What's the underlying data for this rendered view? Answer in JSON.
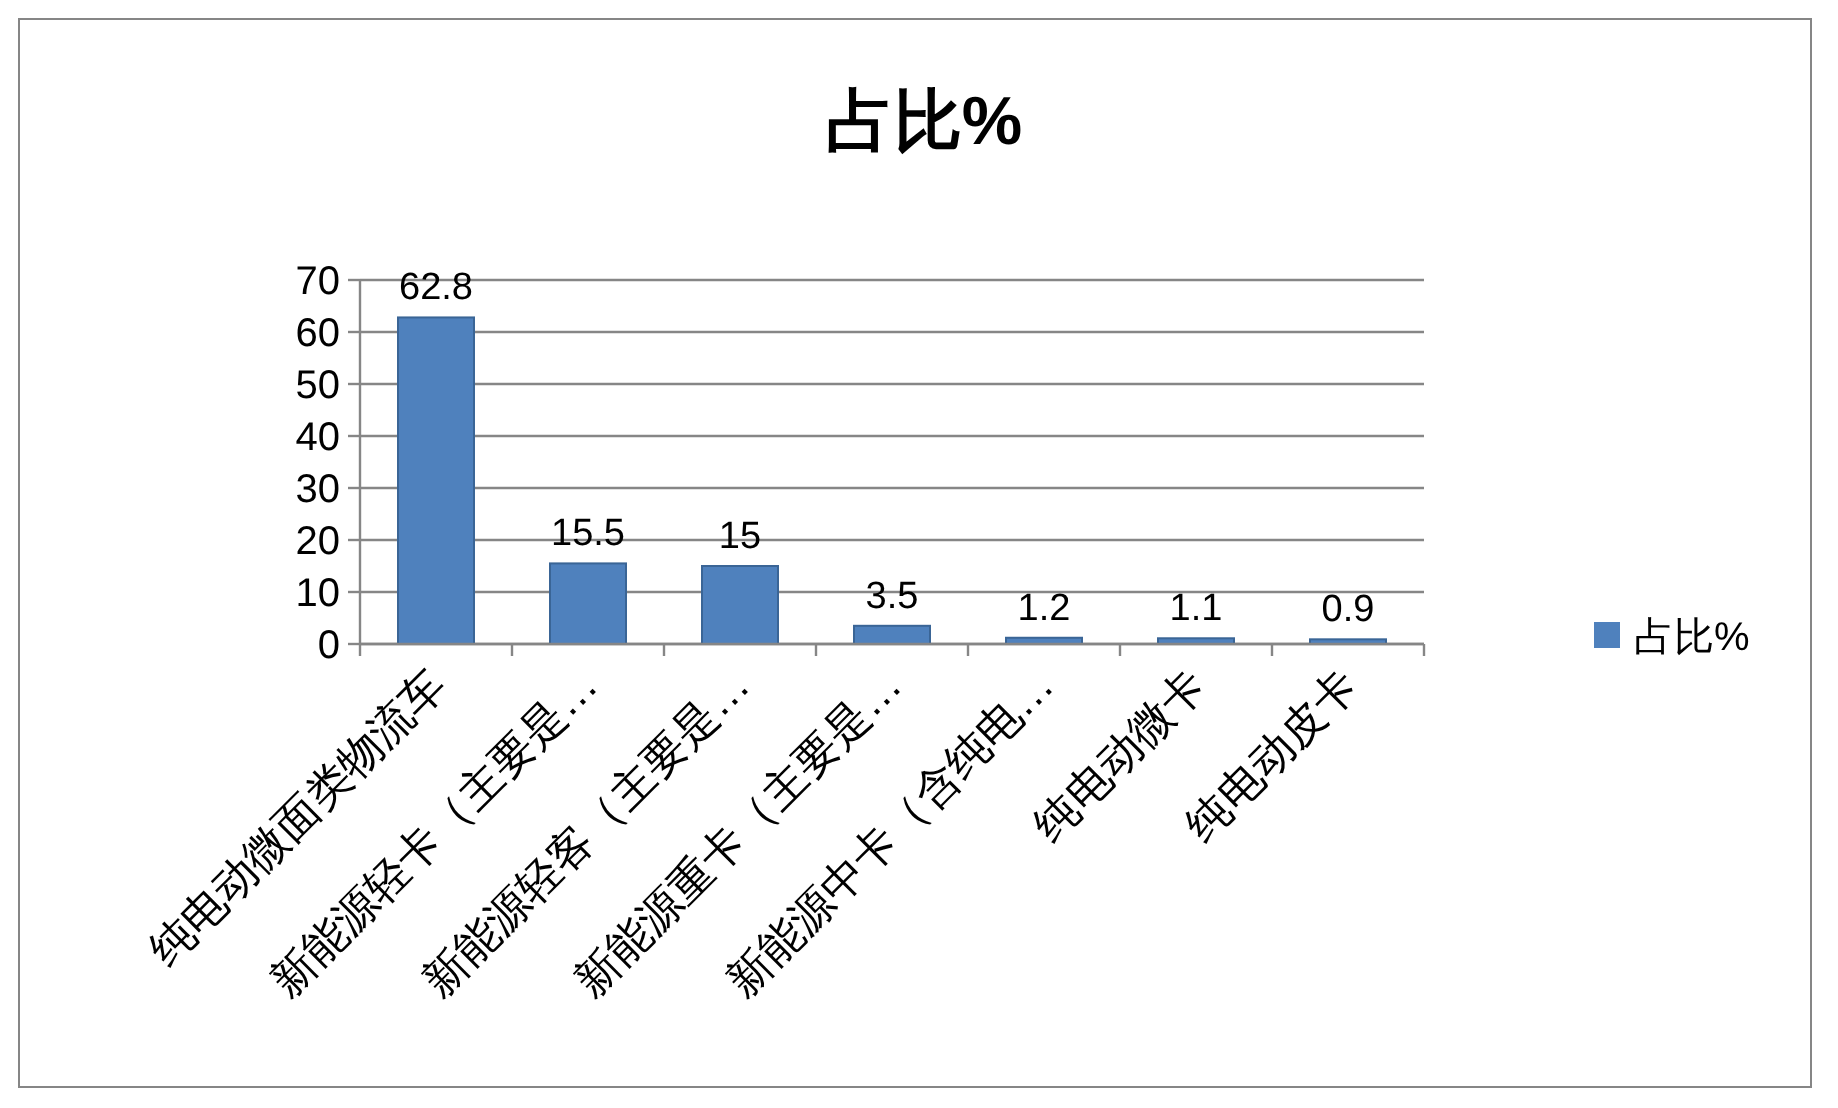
{
  "chart_data": {
    "type": "bar",
    "title": "占比%",
    "categories": [
      "纯电动微面类物流车",
      "新能源轻卡（主要是…",
      "新能源轻客（主要是…",
      "新能源重卡（主要是…",
      "新能源中卡（含纯电…",
      "纯电动微卡",
      "纯电动皮卡"
    ],
    "series": [
      {
        "name": "占比%",
        "color": "#4f81bd",
        "values": [
          62.8,
          15.5,
          15,
          3.5,
          1.2,
          1.1,
          0.9
        ]
      }
    ],
    "ylim": [
      0,
      70
    ],
    "yticks": [
      0,
      10,
      20,
      30,
      40,
      50,
      60,
      70
    ],
    "grid": "y",
    "legend": "right",
    "data_labels": true
  }
}
